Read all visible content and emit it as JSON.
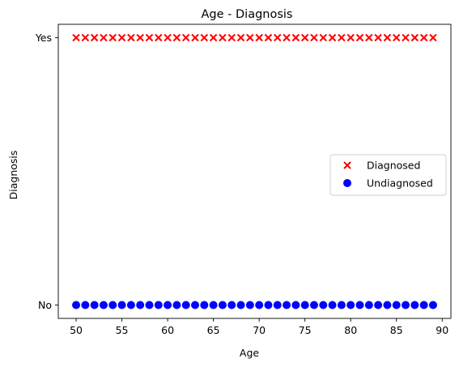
{
  "chart_data": {
    "type": "scatter",
    "title": "Age - Diagnosis",
    "xlabel": "Age",
    "ylabel": "Diagnosis",
    "xlim": [
      48.05,
      90.95
    ],
    "ylim": [
      -0.05,
      1.05
    ],
    "x_ticks": [
      50,
      55,
      60,
      65,
      70,
      75,
      80,
      85,
      90
    ],
    "y_ticks": [
      {
        "value": 0,
        "label": "No"
      },
      {
        "value": 1,
        "label": "Yes"
      }
    ],
    "grid": false,
    "legend": "center-right",
    "series": [
      {
        "name": "Diagnosed",
        "marker": "x",
        "color": "#ff0000",
        "points": [
          [
            50,
            1
          ],
          [
            51,
            1
          ],
          [
            52,
            1
          ],
          [
            53,
            1
          ],
          [
            54,
            1
          ],
          [
            55,
            1
          ],
          [
            56,
            1
          ],
          [
            57,
            1
          ],
          [
            58,
            1
          ],
          [
            59,
            1
          ],
          [
            60,
            1
          ],
          [
            61,
            1
          ],
          [
            62,
            1
          ],
          [
            63,
            1
          ],
          [
            64,
            1
          ],
          [
            65,
            1
          ],
          [
            66,
            1
          ],
          [
            67,
            1
          ],
          [
            68,
            1
          ],
          [
            69,
            1
          ],
          [
            70,
            1
          ],
          [
            71,
            1
          ],
          [
            72,
            1
          ],
          [
            73,
            1
          ],
          [
            74,
            1
          ],
          [
            75,
            1
          ],
          [
            76,
            1
          ],
          [
            77,
            1
          ],
          [
            78,
            1
          ],
          [
            79,
            1
          ],
          [
            80,
            1
          ],
          [
            81,
            1
          ],
          [
            82,
            1
          ],
          [
            83,
            1
          ],
          [
            84,
            1
          ],
          [
            85,
            1
          ],
          [
            86,
            1
          ],
          [
            87,
            1
          ],
          [
            88,
            1
          ],
          [
            89,
            1
          ]
        ]
      },
      {
        "name": "Undiagnosed",
        "marker": "o",
        "color": "#0000ff",
        "points": [
          [
            50,
            0
          ],
          [
            51,
            0
          ],
          [
            52,
            0
          ],
          [
            53,
            0
          ],
          [
            54,
            0
          ],
          [
            55,
            0
          ],
          [
            56,
            0
          ],
          [
            57,
            0
          ],
          [
            58,
            0
          ],
          [
            59,
            0
          ],
          [
            60,
            0
          ],
          [
            61,
            0
          ],
          [
            62,
            0
          ],
          [
            63,
            0
          ],
          [
            64,
            0
          ],
          [
            65,
            0
          ],
          [
            66,
            0
          ],
          [
            67,
            0
          ],
          [
            68,
            0
          ],
          [
            69,
            0
          ],
          [
            70,
            0
          ],
          [
            71,
            0
          ],
          [
            72,
            0
          ],
          [
            73,
            0
          ],
          [
            74,
            0
          ],
          [
            75,
            0
          ],
          [
            76,
            0
          ],
          [
            77,
            0
          ],
          [
            78,
            0
          ],
          [
            79,
            0
          ],
          [
            80,
            0
          ],
          [
            81,
            0
          ],
          [
            82,
            0
          ],
          [
            83,
            0
          ],
          [
            84,
            0
          ],
          [
            85,
            0
          ],
          [
            86,
            0
          ],
          [
            87,
            0
          ],
          [
            88,
            0
          ],
          [
            89,
            0
          ]
        ]
      }
    ]
  }
}
